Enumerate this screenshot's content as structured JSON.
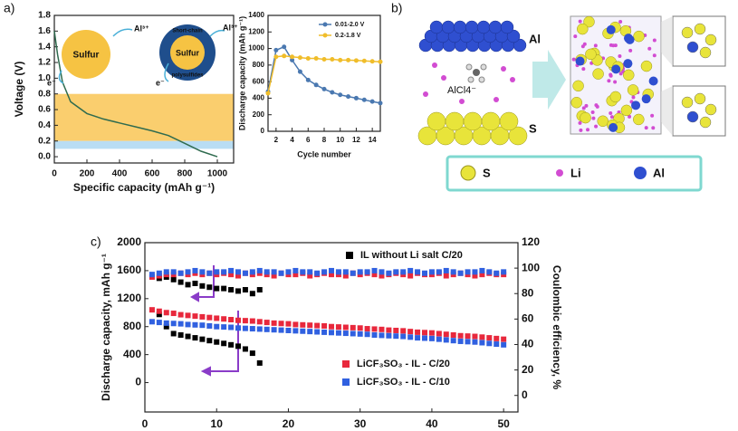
{
  "panel_labels": [
    "a)",
    "b)",
    "c)"
  ],
  "panel_b": {
    "labels": [
      "Al",
      "AlCl4⁻",
      "S"
    ],
    "legend": [
      "S",
      "Li",
      "Al"
    ]
  },
  "chart_data": [
    {
      "type": "line",
      "xlabel": "Specific capacity (mAh g⁻¹)",
      "ylabel": "Voltage (V)",
      "annotations": [
        "Sulfur",
        "Al³⁺",
        "e⁻",
        "Short-chain",
        "polysulfides",
        "Sulfur",
        "Al³⁺",
        "e⁻"
      ],
      "xlim": [
        0,
        1100
      ],
      "xticks": [
        0,
        200,
        400,
        600,
        800,
        1000
      ],
      "ylim": [
        -0.08,
        1.8
      ],
      "yticks": [
        {
          "value": 0,
          "label": "0.0"
        },
        {
          "value": 0.2,
          "label": "0.2"
        },
        {
          "value": 0.4,
          "label": "0.4"
        },
        {
          "value": 0.6,
          "label": "0.6"
        },
        {
          "value": 0.8,
          "label": "0.8"
        },
        {
          "value": 1,
          "label": "1.0"
        },
        {
          "value": 1.2,
          "label": "1.2"
        },
        {
          "value": 1.4,
          "label": "1.4"
        },
        {
          "value": 1.6,
          "label": "1.6"
        },
        {
          "value": 1.8,
          "label": "1.8"
        }
      ],
      "bands": [
        {
          "from": 0.2,
          "to": 0.8,
          "color": "#f9c24a"
        },
        {
          "from": 0.1,
          "to": 0.2,
          "color": "#a8d4f0"
        }
      ],
      "series": [
        {
          "color": "#2f6b4f",
          "x": [
            0,
            20,
            50,
            100,
            200,
            300,
            400,
            500,
            600,
            700,
            800,
            900,
            1000
          ],
          "values": [
            1.6,
            1.3,
            0.95,
            0.7,
            0.55,
            0.48,
            0.43,
            0.38,
            0.33,
            0.27,
            0.17,
            0.07,
            0
          ]
        }
      ]
    },
    {
      "type": "line",
      "markers": true,
      "legend": "top-right",
      "xlabel": "Cycle number",
      "ylabel": "Discharge capacity (mAh g⁻¹)",
      "xlim": [
        1,
        15
      ],
      "xticks": [
        2,
        4,
        6,
        8,
        10,
        12,
        14
      ],
      "ylim": [
        0,
        1400
      ],
      "yticks": [
        0,
        200,
        400,
        600,
        800,
        1000,
        1200,
        1400
      ],
      "series": [
        {
          "name": "0.01-2.0 V",
          "color": "#4a78b0",
          "x": [
            1,
            2,
            3,
            4,
            5,
            6,
            7,
            8,
            9,
            10,
            11,
            12,
            13,
            14,
            15
          ],
          "values": [
            480,
            980,
            1020,
            860,
            720,
            620,
            560,
            510,
            470,
            440,
            420,
            400,
            380,
            360,
            340
          ]
        },
        {
          "name": "0.2-1.8 V",
          "color": "#f0bd2a",
          "x": [
            1,
            2,
            3,
            4,
            5,
            6,
            7,
            8,
            9,
            10,
            11,
            12,
            13,
            14,
            15
          ],
          "values": [
            460,
            900,
            910,
            900,
            890,
            880,
            880,
            870,
            870,
            860,
            860,
            855,
            850,
            845,
            840
          ]
        }
      ]
    },
    {
      "type": "scatter",
      "xlabel": "Cycle number",
      "ylabel": "Discharge capacity, mAh g⁻¹",
      "y2label": "Coulombic efficiency, %",
      "xlim": [
        0,
        52
      ],
      "xticks": [
        0,
        10,
        20,
        30,
        40,
        50
      ],
      "ylim": [
        -420,
        2000
      ],
      "yticks": [
        0,
        400,
        800,
        1200,
        1600,
        2000
      ],
      "y2lim": [
        -13,
        120
      ],
      "y2ticks": [
        0,
        20,
        40,
        60,
        80,
        100,
        120
      ],
      "series": [
        {
          "name": "IL without Li salt C/20",
          "color": "#000000",
          "x": [
            2,
            3,
            4,
            5,
            6,
            7,
            8,
            9,
            10,
            11,
            12,
            13,
            14,
            15,
            16
          ],
          "values": [
            974,
            800,
            700,
            680,
            660,
            640,
            620,
            600,
            580,
            560,
            540,
            520,
            480,
            420,
            280
          ]
        },
        {
          "name": "LiCF₃SO₃ - IL - C/20",
          "color": "#e8283c",
          "x": [
            1,
            2,
            3,
            4,
            5,
            6,
            7,
            8,
            9,
            10,
            11,
            12,
            13,
            14,
            15,
            16,
            17,
            18,
            19,
            20,
            21,
            22,
            23,
            24,
            25,
            26,
            27,
            28,
            29,
            30,
            31,
            32,
            33,
            34,
            35,
            36,
            37,
            38,
            39,
            40,
            41,
            42,
            43,
            44,
            45,
            46,
            47,
            48,
            49,
            50
          ],
          "values": [
            1040,
            1020,
            1000,
            990,
            970,
            960,
            950,
            940,
            930,
            920,
            910,
            900,
            890,
            885,
            880,
            870,
            860,
            850,
            845,
            840,
            830,
            825,
            820,
            815,
            810,
            800,
            795,
            790,
            785,
            780,
            770,
            765,
            760,
            750,
            745,
            740,
            730,
            720,
            715,
            710,
            700,
            690,
            680,
            670,
            665,
            660,
            650,
            640,
            630,
            620
          ]
        },
        {
          "name": "LiCF₃SO₃ - IL - C/10",
          "color": "#3060e0",
          "x": [
            1,
            2,
            3,
            4,
            5,
            6,
            7,
            8,
            9,
            10,
            11,
            12,
            13,
            14,
            15,
            16,
            17,
            18,
            19,
            20,
            21,
            22,
            23,
            24,
            25,
            26,
            27,
            28,
            29,
            30,
            31,
            32,
            33,
            34,
            35,
            36,
            37,
            38,
            39,
            40,
            41,
            42,
            43,
            44,
            45,
            46,
            47,
            48,
            49,
            50
          ],
          "values": [
            870,
            860,
            850,
            845,
            840,
            830,
            825,
            820,
            810,
            800,
            795,
            790,
            780,
            775,
            770,
            765,
            760,
            755,
            750,
            745,
            740,
            735,
            730,
            725,
            720,
            715,
            710,
            705,
            700,
            695,
            690,
            680,
            675,
            670,
            665,
            660,
            650,
            640,
            635,
            630,
            620,
            610,
            600,
            590,
            585,
            580,
            570,
            560,
            550,
            540
          ]
        },
        {
          "color": "#000000",
          "axis": "y2",
          "x": [
            2,
            3,
            4,
            5,
            6,
            7,
            8,
            9,
            10,
            11,
            12,
            13,
            14,
            15,
            16
          ],
          "values": [
            92,
            93,
            91,
            89,
            87,
            88,
            86,
            85,
            84,
            84,
            83,
            82,
            83,
            80,
            83
          ]
        },
        {
          "color": "#e8283c",
          "axis": "y2",
          "x": [
            1,
            2,
            3,
            4,
            5,
            6,
            7,
            8,
            9,
            10,
            11,
            12,
            13,
            14,
            15,
            16,
            17,
            18,
            19,
            20,
            21,
            22,
            23,
            24,
            25,
            26,
            27,
            28,
            29,
            30,
            31,
            32,
            33,
            34,
            35,
            36,
            37,
            38,
            39,
            40,
            41,
            42,
            43,
            44,
            45,
            46,
            47,
            48,
            49,
            50
          ],
          "values": [
            93,
            94,
            95,
            95,
            96,
            95,
            96,
            95,
            96,
            95,
            96,
            95,
            94,
            96,
            95,
            96,
            95,
            94,
            96,
            95,
            95,
            96,
            94,
            95,
            96,
            95,
            95,
            94,
            96,
            95,
            96,
            95,
            94,
            95,
            96,
            95,
            94,
            96,
            95,
            95,
            96,
            94,
            95,
            96,
            95,
            94,
            95,
            96,
            95,
            95
          ]
        },
        {
          "color": "#3060e0",
          "axis": "y2",
          "x": [
            1,
            2,
            3,
            4,
            5,
            6,
            7,
            8,
            9,
            10,
            11,
            12,
            13,
            14,
            15,
            16,
            17,
            18,
            19,
            20,
            21,
            22,
            23,
            24,
            25,
            26,
            27,
            28,
            29,
            30,
            31,
            32,
            33,
            34,
            35,
            36,
            37,
            38,
            39,
            40,
            41,
            42,
            43,
            44,
            45,
            46,
            47,
            48,
            49,
            50
          ],
          "values": [
            95,
            96,
            97,
            97,
            96,
            97,
            98,
            97,
            96,
            97,
            97,
            98,
            97,
            96,
            97,
            98,
            97,
            97,
            96,
            97,
            98,
            97,
            97,
            96,
            97,
            98,
            97,
            97,
            96,
            97,
            97,
            98,
            97,
            96,
            97,
            97,
            98,
            97,
            96,
            97,
            97,
            98,
            97,
            96,
            97,
            97,
            98,
            97,
            96,
            97
          ]
        }
      ]
    }
  ]
}
